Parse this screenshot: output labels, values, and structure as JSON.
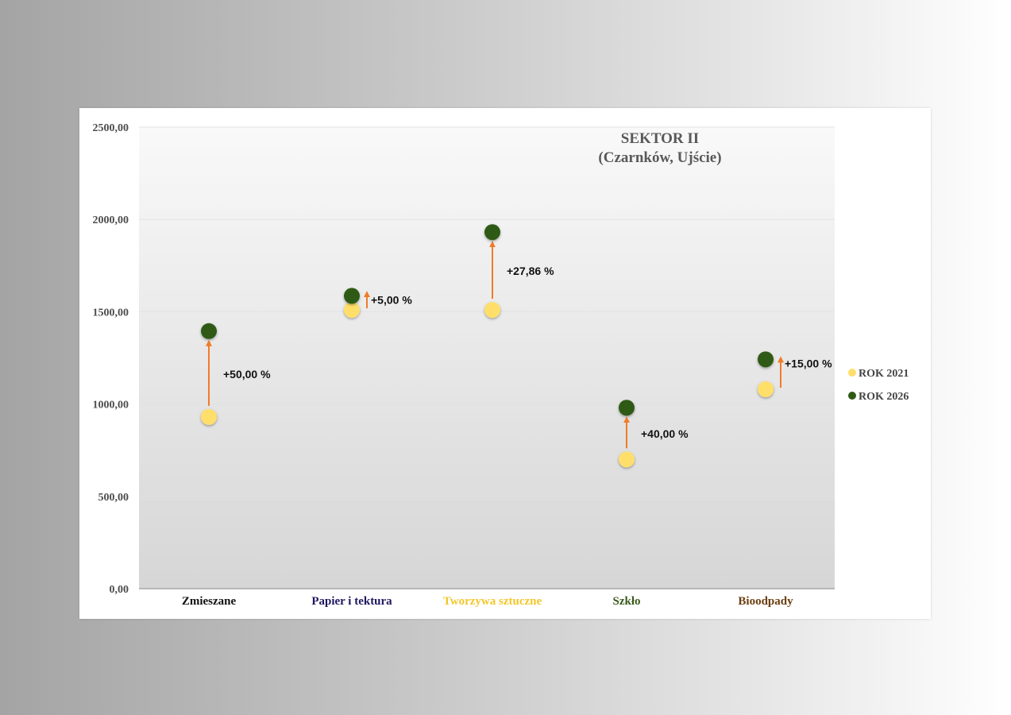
{
  "chart_data": {
    "type": "scatter",
    "title": "SEKTOR II",
    "subtitle": "(Czarnków, Ujście)",
    "xlabel": "",
    "ylabel": "",
    "ylim": [
      0,
      2500
    ],
    "y_ticks": [
      "0,00",
      "500,00",
      "1000,00",
      "1500,00",
      "2000,00",
      "2500,00"
    ],
    "grid": true,
    "legend_position": "right",
    "categories": [
      "Zmieszane",
      "Papier i tektura",
      "Tworzywa sztuczne",
      "Szkło",
      "Bioodpady"
    ],
    "category_colors": [
      "#111111",
      "#1f1760",
      "#f2c72a",
      "#3a5a1c",
      "#6b3d0e"
    ],
    "series": [
      {
        "name": "ROK 2021",
        "color": "#ffdf6a",
        "values": [
          930,
          1510,
          1510,
          700,
          1080
        ]
      },
      {
        "name": "ROK 2026",
        "color": "#2f5a14",
        "values": [
          1395,
          1586,
          1931,
          980,
          1242
        ]
      }
    ],
    "arrow_color": "#f07c28",
    "annotations": [
      "+50,00 %",
      "+5,00 %",
      "+27,86 %",
      "+40,00 %",
      "+15,00 %"
    ]
  }
}
